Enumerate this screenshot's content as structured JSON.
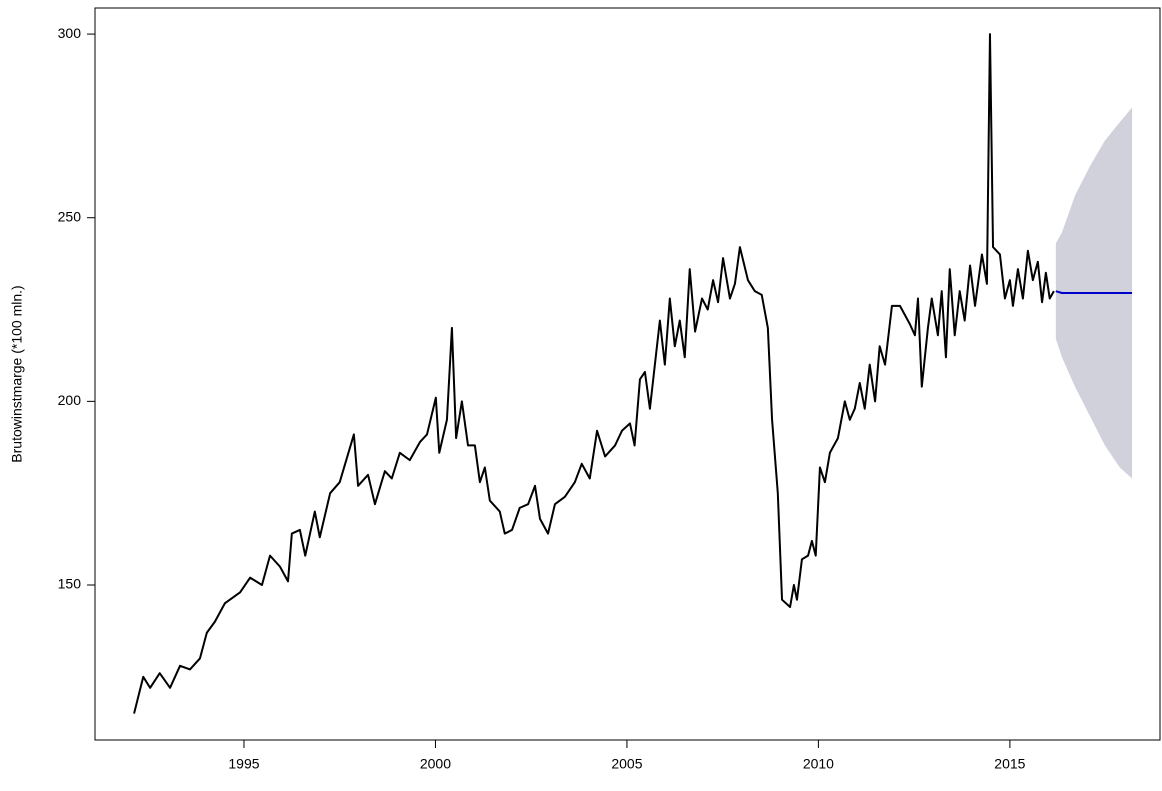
{
  "chart_data": {
    "type": "line",
    "ylabel": "Brutowinstmarge (*100 mln.)",
    "xlim": [
      1991.11,
      2018.92
    ],
    "ylim": [
      107.8,
      307.1
    ],
    "xticks": [
      1995,
      2000,
      2005,
      2010,
      2015
    ],
    "yticks": [
      150,
      200,
      250,
      300
    ],
    "series": [
      {
        "color": "#000000",
        "x": [
          1992.13,
          1992.37,
          1992.55,
          1992.8,
          1993.07,
          1993.33,
          1993.59,
          1993.85,
          1994.03,
          1994.24,
          1994.5,
          1994.9,
          1995.16,
          1995.47,
          1995.68,
          1995.94,
          1996.15,
          1996.25,
          1996.46,
          1996.6,
          1996.85,
          1996.98,
          1997.25,
          1997.5,
          1997.87,
          1997.98,
          1998.24,
          1998.42,
          1998.68,
          1998.86,
          1999.07,
          1999.33,
          1999.6,
          1999.78,
          2000.01,
          2000.1,
          2000.3,
          2000.43,
          2000.54,
          2000.69,
          2000.85,
          2001.03,
          2001.16,
          2001.29,
          2001.42,
          2001.68,
          2001.81,
          2002.0,
          2002.2,
          2002.42,
          2002.6,
          2002.73,
          2002.94,
          2003.12,
          2003.38,
          2003.64,
          2003.82,
          2004.03,
          2004.22,
          2004.43,
          2004.69,
          2004.87,
          2005.08,
          2005.2,
          2005.34,
          2005.47,
          2005.6,
          2005.73,
          2005.86,
          2005.99,
          2006.12,
          2006.25,
          2006.38,
          2006.51,
          2006.64,
          2006.78,
          2006.96,
          2007.11,
          2007.25,
          2007.38,
          2007.51,
          2007.69,
          2007.82,
          2007.95,
          2008.16,
          2008.34,
          2008.52,
          2008.68,
          2008.79,
          2008.94,
          2009.05,
          2009.26,
          2009.36,
          2009.44,
          2009.57,
          2009.73,
          2009.83,
          2009.93,
          2010.04,
          2010.17,
          2010.3,
          2010.51,
          2010.69,
          2010.82,
          2010.95,
          2011.08,
          2011.21,
          2011.34,
          2011.48,
          2011.6,
          2011.74,
          2011.92,
          2012.13,
          2012.39,
          2012.52,
          2012.6,
          2012.7,
          2012.86,
          2012.96,
          2013.12,
          2013.22,
          2013.33,
          2013.43,
          2013.56,
          2013.69,
          2013.82,
          2013.96,
          2014.09,
          2014.27,
          2014.4,
          2014.48,
          2014.56,
          2014.74,
          2014.87,
          2015.0,
          2015.08,
          2015.21,
          2015.34,
          2015.47,
          2015.6,
          2015.73,
          2015.84,
          2015.94,
          2016.04,
          2016.15
        ],
        "values": [
          115,
          125,
          122,
          126,
          122,
          128,
          127,
          130,
          137,
          140,
          145,
          148,
          152,
          150,
          158,
          155,
          151,
          164,
          165,
          158,
          170,
          163,
          175,
          178,
          191,
          177,
          180,
          172,
          181,
          179,
          186,
          184,
          189,
          191,
          201,
          186,
          195,
          220,
          190,
          200,
          188,
          188,
          178,
          182,
          173,
          170,
          164,
          165,
          171,
          172,
          177,
          168,
          164,
          172,
          174,
          178,
          183,
          179,
          192,
          185,
          188,
          192,
          194,
          188,
          206,
          208,
          198,
          210,
          222,
          210,
          228,
          215,
          222,
          212,
          236,
          219,
          228,
          225,
          233,
          227,
          239,
          228,
          232,
          242,
          233,
          230,
          229,
          220,
          195,
          175,
          146,
          144,
          150,
          146,
          157,
          158,
          162,
          158,
          182,
          178,
          186,
          190,
          200,
          195,
          198,
          205,
          198,
          210,
          200,
          215,
          210,
          226,
          226,
          221,
          218,
          228,
          204,
          220,
          228,
          218,
          230,
          212,
          236,
          218,
          230,
          222,
          237,
          226,
          240,
          232,
          300,
          242,
          240,
          228,
          233,
          226,
          236,
          228,
          241,
          233,
          238,
          227,
          235,
          228,
          230
        ]
      },
      {
        "color": "#0000cc",
        "band_color": "#d0d1da",
        "x": [
          2016.2,
          2016.36,
          2016.7,
          2017.09,
          2017.48,
          2017.87,
          2018.19
        ],
        "values": [
          230,
          229.5,
          229.5,
          229.5,
          229.5,
          229.5,
          229.5
        ],
        "lower": [
          217,
          212,
          204,
          196,
          188,
          182,
          179
        ],
        "upper": [
          243,
          246,
          256,
          264,
          271,
          276,
          280
        ]
      }
    ]
  }
}
